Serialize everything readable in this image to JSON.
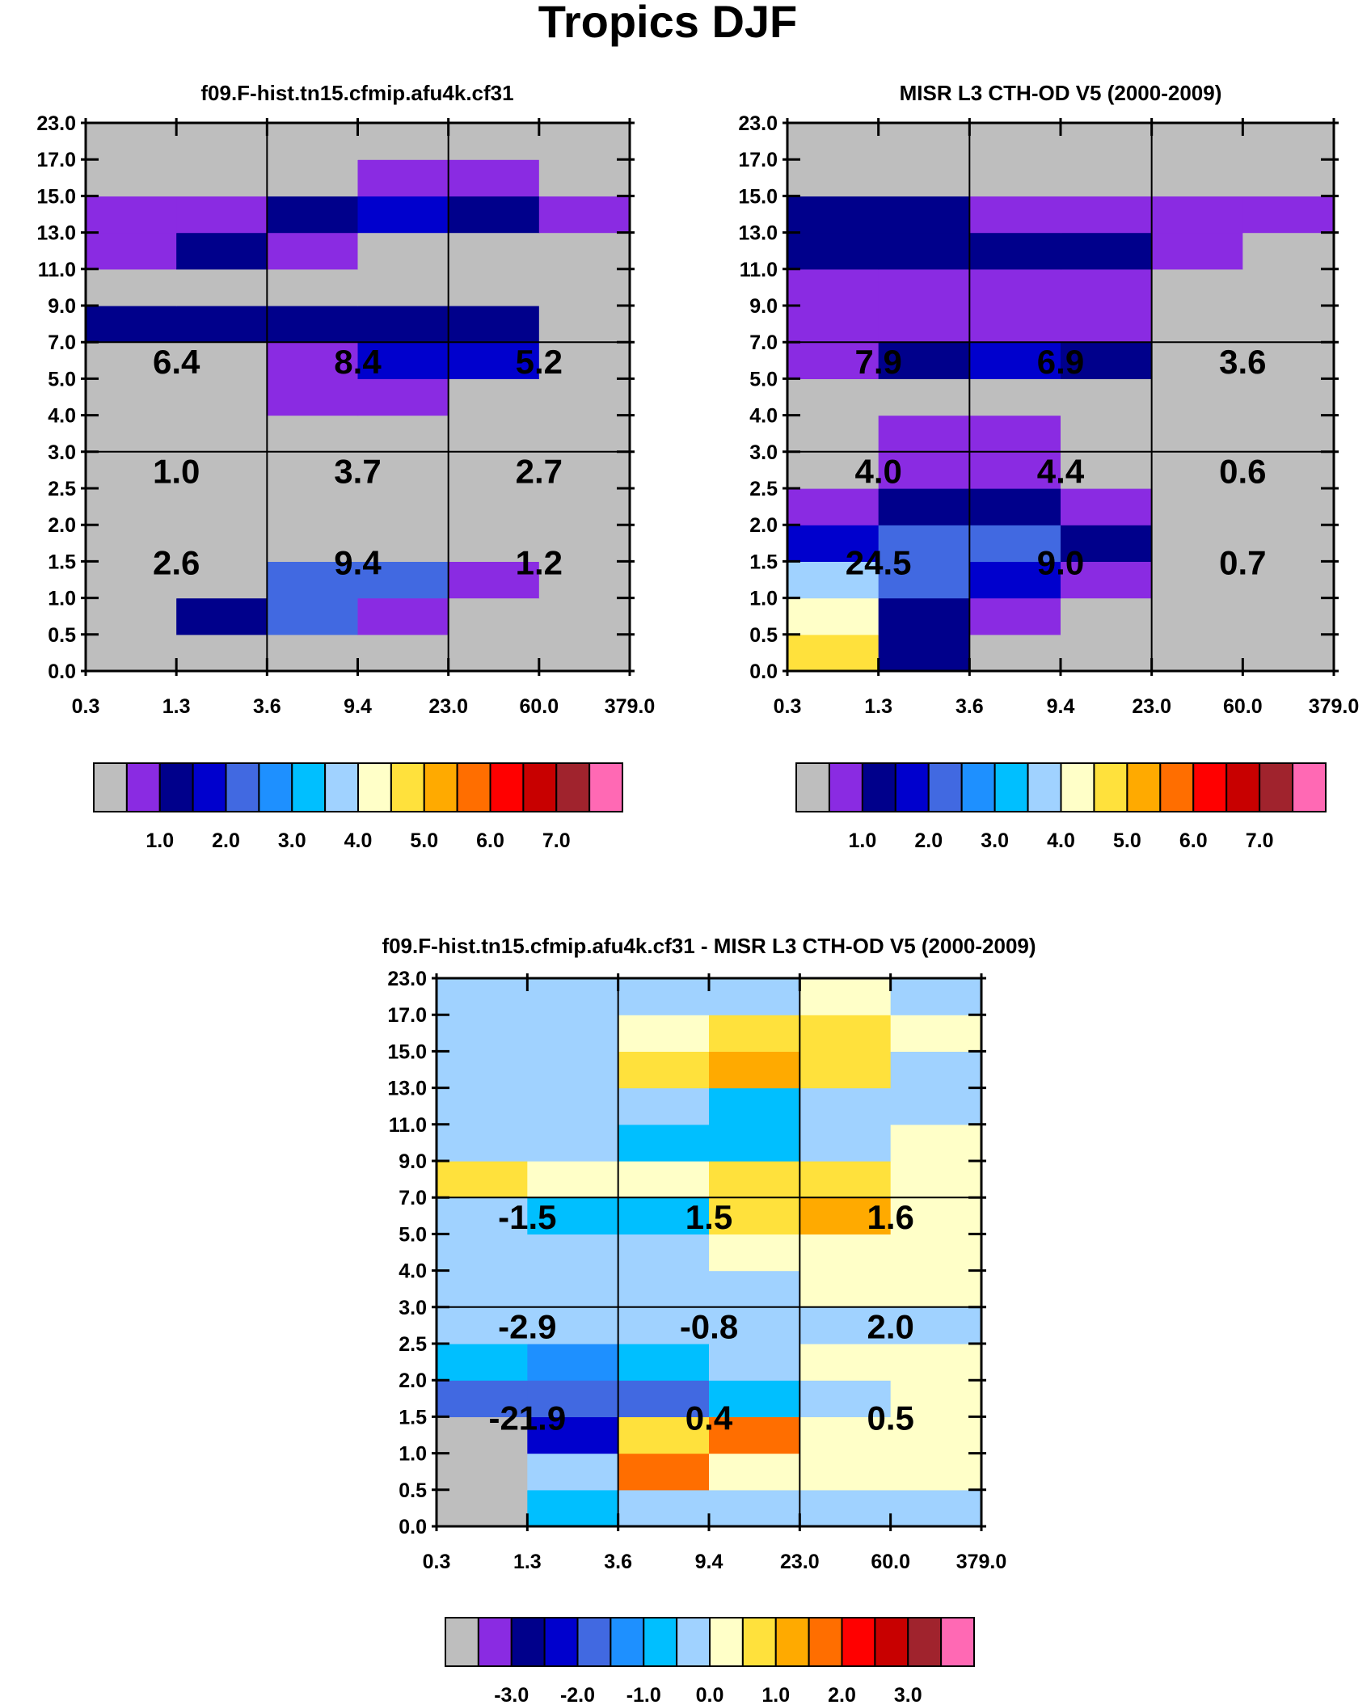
{
  "figure": {
    "title": "Tropics DJF"
  },
  "chart_data": [
    {
      "type": "heatmap",
      "id": "model",
      "title": "f09.F-hist.tn15.cfmip.afu4k.cf31",
      "x_labels": [
        "0.3",
        "1.3",
        "3.6",
        "9.4",
        "23.0",
        "60.0",
        "379.0"
      ],
      "y_labels": [
        "0.0",
        "0.5",
        "1.0",
        "1.5",
        "2.0",
        "2.5",
        "3.0",
        "4.0",
        "5.0",
        "7.0",
        "9.0",
        "11.0",
        "13.0",
        "15.0",
        "17.0",
        "23.0"
      ],
      "grid": [
        [
          0,
          0,
          0,
          0,
          0,
          0
        ],
        [
          0,
          2,
          4,
          1,
          0,
          0
        ],
        [
          0,
          0,
          4,
          4,
          1,
          0
        ],
        [
          0,
          0,
          0,
          0,
          0,
          0
        ],
        [
          0,
          0,
          0,
          0,
          0,
          0
        ],
        [
          0,
          0,
          0,
          0,
          0,
          0
        ],
        [
          0,
          0,
          0,
          0,
          0,
          0
        ],
        [
          0,
          0,
          1,
          1,
          0,
          0
        ],
        [
          0,
          0,
          1,
          3,
          3,
          0
        ],
        [
          2,
          2,
          2,
          2,
          2,
          0
        ],
        [
          0,
          0,
          0,
          0,
          0,
          0
        ],
        [
          1,
          2,
          1,
          0,
          0,
          0
        ],
        [
          1,
          1,
          2,
          3,
          2,
          1
        ],
        [
          0,
          0,
          0,
          1,
          1,
          0
        ],
        [
          0,
          0,
          0,
          0,
          0,
          0
        ]
      ],
      "annotations": [
        {
          "row": 0,
          "col": 0,
          "text": "2.6"
        },
        {
          "row": 0,
          "col": 1,
          "text": "9.4"
        },
        {
          "row": 0,
          "col": 2,
          "text": "1.2"
        },
        {
          "row": 1,
          "col": 0,
          "text": "1.0"
        },
        {
          "row": 1,
          "col": 1,
          "text": "3.7"
        },
        {
          "row": 1,
          "col": 2,
          "text": "2.7"
        },
        {
          "row": 2,
          "col": 0,
          "text": "6.4"
        },
        {
          "row": 2,
          "col": 1,
          "text": "8.4"
        },
        {
          "row": 2,
          "col": 2,
          "text": "5.2"
        }
      ],
      "colorbar": {
        "colors": [
          "#bebebe",
          "#8a2be2",
          "#00008b",
          "#0000cd",
          "#4169e1",
          "#1e90ff",
          "#00bfff",
          "#a0d2ff",
          "#ffffc8",
          "#ffe13c",
          "#ffaa00",
          "#ff6e00",
          "#ff0000",
          "#c80000",
          "#a0232d",
          "#ff69b4"
        ],
        "tick_labels": [
          "1.0",
          "2.0",
          "3.0",
          "4.0",
          "5.0",
          "6.0",
          "7.0"
        ]
      }
    },
    {
      "type": "heatmap",
      "id": "obs",
      "title": "MISR L3 CTH-OD V5 (2000-2009)",
      "x_labels": [
        "0.3",
        "1.3",
        "3.6",
        "9.4",
        "23.0",
        "60.0",
        "379.0"
      ],
      "y_labels": [
        "0.0",
        "0.5",
        "1.0",
        "1.5",
        "2.0",
        "2.5",
        "3.0",
        "4.0",
        "5.0",
        "7.0",
        "9.0",
        "11.0",
        "13.0",
        "15.0",
        "17.0",
        "23.0"
      ],
      "grid": [
        [
          9,
          2,
          0,
          0,
          0,
          0
        ],
        [
          8,
          2,
          1,
          0,
          0,
          0
        ],
        [
          7,
          4,
          3,
          1,
          0,
          0
        ],
        [
          3,
          4,
          4,
          2,
          0,
          0
        ],
        [
          1,
          2,
          2,
          1,
          0,
          0
        ],
        [
          0,
          1,
          1,
          0,
          0,
          0
        ],
        [
          0,
          1,
          1,
          0,
          0,
          0
        ],
        [
          0,
          0,
          0,
          0,
          0,
          0
        ],
        [
          1,
          2,
          3,
          2,
          0,
          0
        ],
        [
          1,
          1,
          1,
          1,
          0,
          0
        ],
        [
          1,
          1,
          1,
          1,
          0,
          0
        ],
        [
          2,
          2,
          2,
          2,
          1,
          0
        ],
        [
          2,
          2,
          1,
          1,
          1,
          1
        ],
        [
          0,
          0,
          0,
          0,
          0,
          0
        ],
        [
          0,
          0,
          0,
          0,
          0,
          0
        ]
      ],
      "annotations": [
        {
          "row": 0,
          "col": 0,
          "text": "24.5"
        },
        {
          "row": 0,
          "col": 1,
          "text": "9.0"
        },
        {
          "row": 0,
          "col": 2,
          "text": "0.7"
        },
        {
          "row": 1,
          "col": 0,
          "text": "4.0"
        },
        {
          "row": 1,
          "col": 1,
          "text": "4.4"
        },
        {
          "row": 1,
          "col": 2,
          "text": "0.6"
        },
        {
          "row": 2,
          "col": 0,
          "text": "7.9"
        },
        {
          "row": 2,
          "col": 1,
          "text": "6.9"
        },
        {
          "row": 2,
          "col": 2,
          "text": "3.6"
        }
      ],
      "colorbar": {
        "colors": [
          "#bebebe",
          "#8a2be2",
          "#00008b",
          "#0000cd",
          "#4169e1",
          "#1e90ff",
          "#00bfff",
          "#a0d2ff",
          "#ffffc8",
          "#ffe13c",
          "#ffaa00",
          "#ff6e00",
          "#ff0000",
          "#c80000",
          "#a0232d",
          "#ff69b4"
        ],
        "tick_labels": [
          "1.0",
          "2.0",
          "3.0",
          "4.0",
          "5.0",
          "6.0",
          "7.0"
        ]
      }
    },
    {
      "type": "heatmap",
      "id": "diff",
      "title": "f09.F-hist.tn15.cfmip.afu4k.cf31 - MISR L3 CTH-OD V5 (2000-2009)",
      "x_labels": [
        "0.3",
        "1.3",
        "3.6",
        "9.4",
        "23.0",
        "60.0",
        "379.0"
      ],
      "y_labels": [
        "0.0",
        "0.5",
        "1.0",
        "1.5",
        "2.0",
        "2.5",
        "3.0",
        "4.0",
        "5.0",
        "7.0",
        "9.0",
        "11.0",
        "13.0",
        "15.0",
        "17.0",
        "23.0"
      ],
      "grid": [
        [
          0,
          6,
          7,
          7,
          7,
          7
        ],
        [
          0,
          7,
          11,
          8,
          8,
          8
        ],
        [
          0,
          3,
          9,
          11,
          8,
          8
        ],
        [
          4,
          4,
          4,
          6,
          7,
          8
        ],
        [
          6,
          5,
          6,
          7,
          8,
          8
        ],
        [
          7,
          7,
          7,
          7,
          7,
          7
        ],
        [
          7,
          7,
          7,
          7,
          8,
          8
        ],
        [
          7,
          7,
          7,
          8,
          8,
          8
        ],
        [
          7,
          6,
          6,
          9,
          10,
          8
        ],
        [
          9,
          8,
          8,
          9,
          9,
          8
        ],
        [
          7,
          7,
          6,
          6,
          7,
          8
        ],
        [
          7,
          7,
          7,
          6,
          7,
          7
        ],
        [
          7,
          7,
          9,
          10,
          9,
          7
        ],
        [
          7,
          7,
          8,
          9,
          9,
          8
        ],
        [
          7,
          7,
          7,
          7,
          8,
          7
        ]
      ],
      "annotations": [
        {
          "row": 0,
          "col": 0,
          "text": "-21.9"
        },
        {
          "row": 0,
          "col": 1,
          "text": "0.4"
        },
        {
          "row": 0,
          "col": 2,
          "text": "0.5"
        },
        {
          "row": 1,
          "col": 0,
          "text": "-2.9"
        },
        {
          "row": 1,
          "col": 1,
          "text": "-0.8"
        },
        {
          "row": 1,
          "col": 2,
          "text": "2.0"
        },
        {
          "row": 2,
          "col": 0,
          "text": "-1.5"
        },
        {
          "row": 2,
          "col": 1,
          "text": "1.5"
        },
        {
          "row": 2,
          "col": 2,
          "text": "1.6"
        }
      ],
      "colorbar": {
        "colors": [
          "#bebebe",
          "#8a2be2",
          "#00008b",
          "#0000cd",
          "#4169e1",
          "#1e90ff",
          "#00bfff",
          "#a0d2ff",
          "#ffffc8",
          "#ffe13c",
          "#ffaa00",
          "#ff6e00",
          "#ff0000",
          "#c80000",
          "#a0232d",
          "#ff69b4"
        ],
        "tick_labels": [
          "-3.0",
          "-2.0",
          "-1.0",
          "0.0",
          "1.0",
          "2.0",
          "3.0"
        ]
      }
    }
  ]
}
